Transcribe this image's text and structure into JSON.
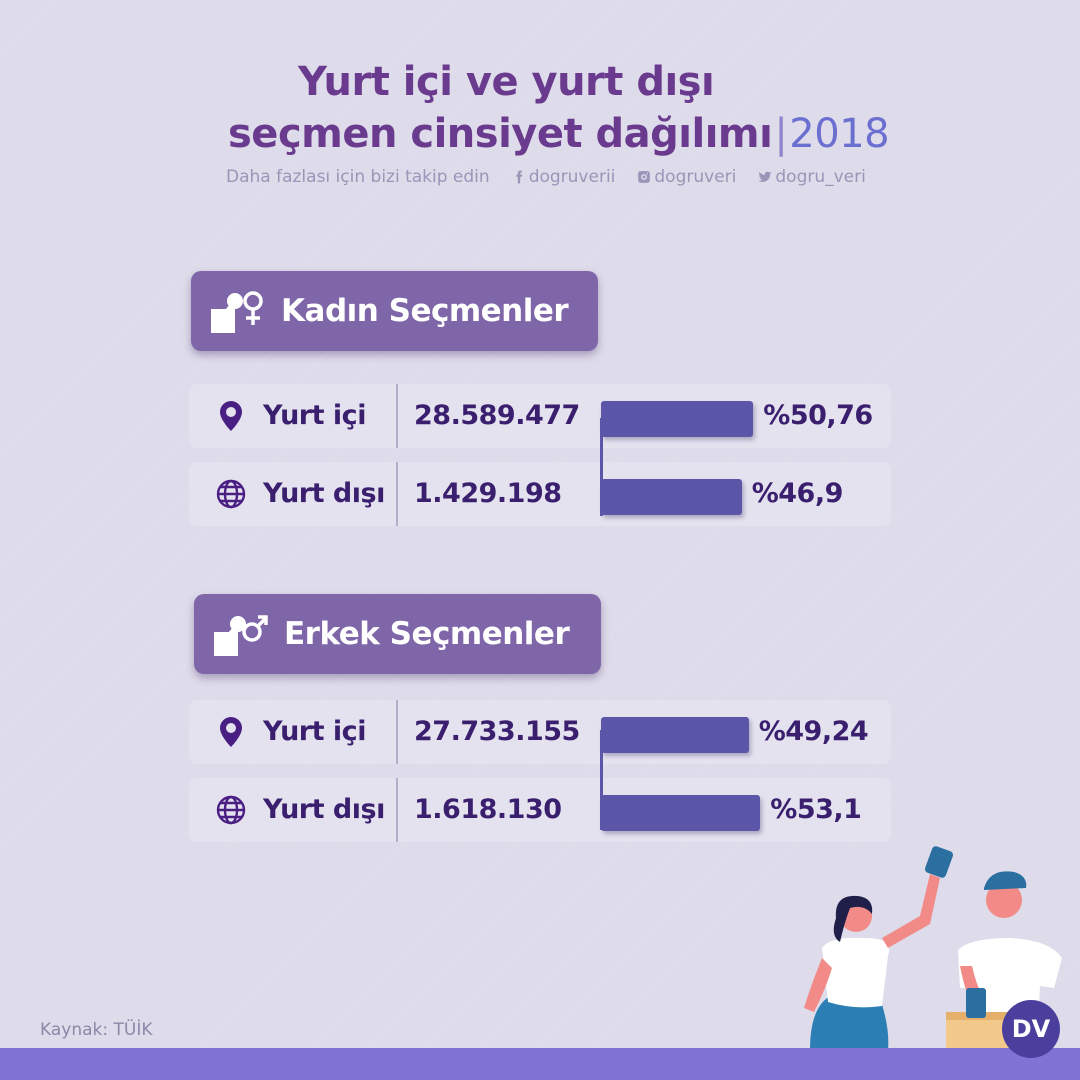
{
  "title": {
    "line1": "Yurt içi ve yurt dışı",
    "line2": "seçmen cinsiyet dağılımı",
    "separator": "|",
    "year": "2018"
  },
  "follow": {
    "text": "Daha fazlası için bizi takip edin",
    "facebook": "dogruverii",
    "instagram": "dogruveri",
    "twitter": "dogru_veri"
  },
  "groups": [
    {
      "title": "Kadın Seçmenler",
      "icon": "female-voter-icon",
      "rows": [
        {
          "label": "Yurt içi",
          "icon": "location-pin-icon",
          "count": "28.589.477",
          "percent_label": "%50,76"
        },
        {
          "label": "Yurt dışı",
          "icon": "globe-icon",
          "count": "1.429.198",
          "percent_label": "%46,9"
        }
      ]
    },
    {
      "title": "Erkek Seçmenler",
      "icon": "male-voter-icon",
      "rows": [
        {
          "label": "Yurt içi",
          "icon": "location-pin-icon",
          "count": "27.733.155",
          "percent_label": "%49,24"
        },
        {
          "label": "Yurt dışı",
          "icon": "globe-icon",
          "count": "1.618.130",
          "percent_label": "%53,1"
        }
      ]
    }
  ],
  "source": "Kaynak: TÜİK",
  "logo": "DV",
  "colors": {
    "background": "#dedbea",
    "title": "#6a3a8e",
    "header": "#7e66a8",
    "bar": "#5c56a8",
    "text": "#3a1f6e",
    "footer": "#8073d6"
  },
  "chart_data": {
    "type": "bar",
    "categories": [
      "Yurt içi",
      "Yurt dışı"
    ],
    "series": [
      {
        "name": "Kadın Seçmenler",
        "counts": [
          28589477,
          1429198
        ],
        "values": [
          50.76,
          46.9
        ]
      },
      {
        "name": "Erkek Seçmenler",
        "counts": [
          27733155,
          1618130
        ],
        "values": [
          49.24,
          53.1
        ]
      }
    ],
    "title": "Yurt içi ve yurt dışı seçmen cinsiyet dağılımı 2018"
  }
}
